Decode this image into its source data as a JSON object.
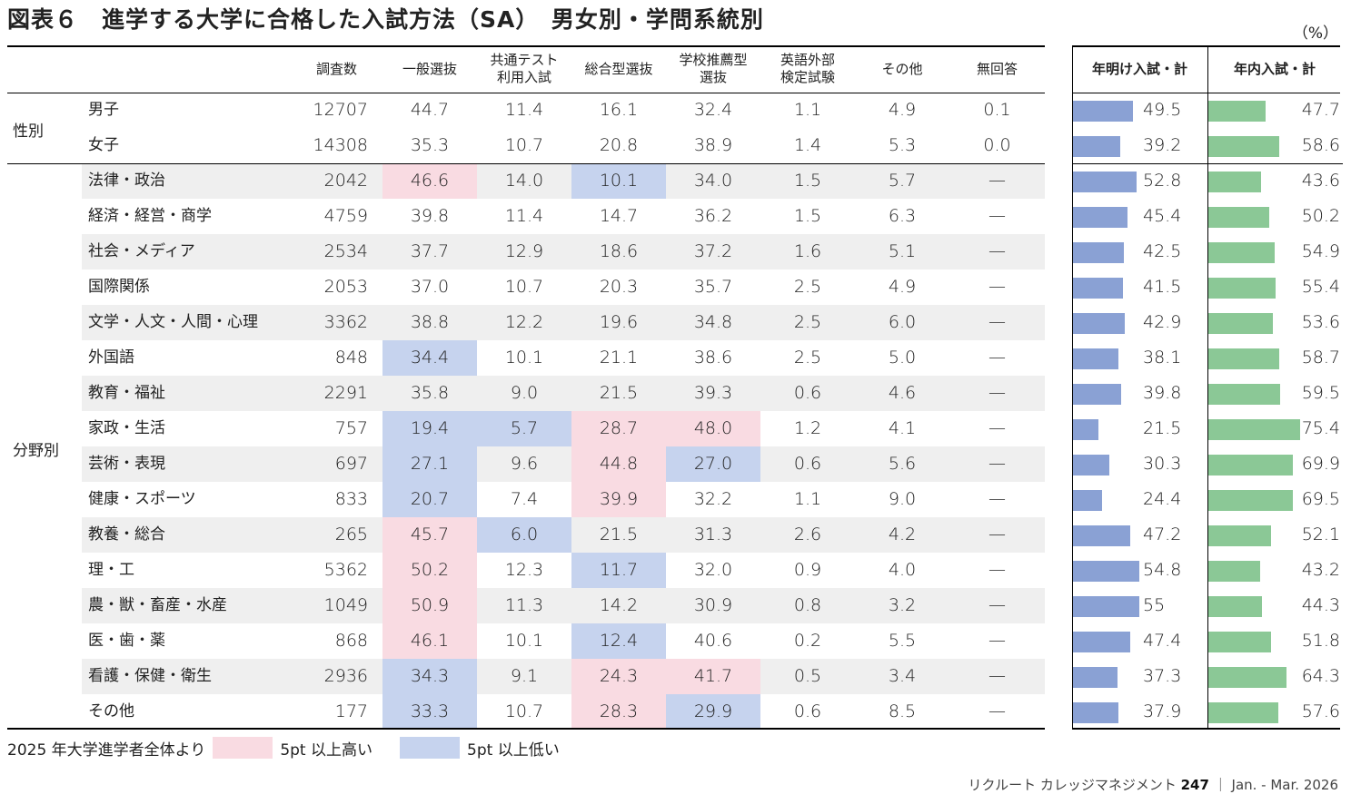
{
  "title": "図表６　進学する大学に合格した入試方法（SA）　男女別・学問系統別",
  "unit": "（%）",
  "colors": {
    "pink": "#f9dbe2",
    "blue": "#c6d3ee",
    "gray": "#efefef",
    "bar_left": "#8aa1d4",
    "bar_right": "#8bc896"
  },
  "headers": [
    "調査数",
    "一般選抜",
    "共通テスト\n利用入試",
    "総合型選抜",
    "学校推薦型\n選抜",
    "英語外部\n検定試験",
    "その他",
    "無回答"
  ],
  "right_headers": [
    "年明け入試・計",
    "年内入試・計"
  ],
  "groups": [
    "性別",
    "分野別"
  ],
  "rows": [
    {
      "name": "男子",
      "n": "12707",
      "v": [
        "44.7",
        "11.4",
        "16.1",
        "32.4",
        "1.1",
        "4.9",
        "0.1"
      ],
      "hl": [
        "",
        "",
        "",
        ""
      ],
      "a": 49.5,
      "b": 47.7
    },
    {
      "name": "女子",
      "n": "14308",
      "v": [
        "35.3",
        "10.7",
        "20.8",
        "38.9",
        "1.4",
        "5.3",
        "0.0"
      ],
      "hl": [
        "",
        "",
        "",
        ""
      ],
      "a": 39.2,
      "b": 58.6
    },
    {
      "name": "法律・政治",
      "n": "2042",
      "v": [
        "46.6",
        "14.0",
        "10.1",
        "34.0",
        "1.5",
        "5.7",
        "—"
      ],
      "hl": [
        "p",
        "",
        "b",
        ""
      ],
      "a": 52.8,
      "b": 43.6
    },
    {
      "name": "経済・経営・商学",
      "n": "4759",
      "v": [
        "39.8",
        "11.4",
        "14.7",
        "36.2",
        "1.5",
        "6.3",
        "—"
      ],
      "hl": [
        "",
        "",
        "",
        ""
      ],
      "a": 45.4,
      "b": 50.2
    },
    {
      "name": "社会・メディア",
      "n": "2534",
      "v": [
        "37.7",
        "12.9",
        "18.6",
        "37.2",
        "1.6",
        "5.1",
        "—"
      ],
      "hl": [
        "",
        "",
        "",
        ""
      ],
      "a": 42.5,
      "b": 54.9
    },
    {
      "name": "国際関係",
      "n": "2053",
      "v": [
        "37.0",
        "10.7",
        "20.3",
        "35.7",
        "2.5",
        "4.9",
        "—"
      ],
      "hl": [
        "",
        "",
        "",
        ""
      ],
      "a": 41.5,
      "b": 55.4
    },
    {
      "name": "文学・人文・人間・心理",
      "n": "3362",
      "v": [
        "38.8",
        "12.2",
        "19.6",
        "34.8",
        "2.5",
        "6.0",
        "—"
      ],
      "hl": [
        "",
        "",
        "",
        ""
      ],
      "a": 42.9,
      "b": 53.6
    },
    {
      "name": "外国語",
      "n": "848",
      "v": [
        "34.4",
        "10.1",
        "21.1",
        "38.6",
        "2.5",
        "5.0",
        "—"
      ],
      "hl": [
        "b",
        "",
        "",
        ""
      ],
      "a": 38.1,
      "b": 58.7
    },
    {
      "name": "教育・福祉",
      "n": "2291",
      "v": [
        "35.8",
        "9.0",
        "21.5",
        "39.3",
        "0.6",
        "4.6",
        "—"
      ],
      "hl": [
        "",
        "",
        "",
        ""
      ],
      "a": 39.8,
      "b": 59.5
    },
    {
      "name": "家政・生活",
      "n": "757",
      "v": [
        "19.4",
        "5.7",
        "28.7",
        "48.0",
        "1.2",
        "4.1",
        "—"
      ],
      "hl": [
        "b",
        "b",
        "p",
        "p"
      ],
      "a": 21.5,
      "b": 75.4
    },
    {
      "name": "芸術・表現",
      "n": "697",
      "v": [
        "27.1",
        "9.6",
        "44.8",
        "27.0",
        "0.6",
        "5.6",
        "—"
      ],
      "hl": [
        "b",
        "",
        "p",
        "b"
      ],
      "a": 30.3,
      "b": 69.9
    },
    {
      "name": "健康・スポーツ",
      "n": "833",
      "v": [
        "20.7",
        "7.4",
        "39.9",
        "32.2",
        "1.1",
        "9.0",
        "—"
      ],
      "hl": [
        "b",
        "",
        "p",
        ""
      ],
      "a": 24.4,
      "b": 69.5
    },
    {
      "name": "教養・総合",
      "n": "265",
      "v": [
        "45.7",
        "6.0",
        "21.5",
        "31.3",
        "2.6",
        "4.2",
        "—"
      ],
      "hl": [
        "p",
        "b",
        "",
        ""
      ],
      "a": 47.2,
      "b": 52.1
    },
    {
      "name": "理・工",
      "n": "5362",
      "v": [
        "50.2",
        "12.3",
        "11.7",
        "32.0",
        "0.9",
        "4.0",
        "—"
      ],
      "hl": [
        "p",
        "",
        "b",
        ""
      ],
      "a": 54.8,
      "b": 43.2
    },
    {
      "name": "農・獣・畜産・水産",
      "n": "1049",
      "v": [
        "50.9",
        "11.3",
        "14.2",
        "30.9",
        "0.8",
        "3.2",
        "—"
      ],
      "hl": [
        "p",
        "",
        "",
        ""
      ],
      "a": 55.0,
      "b": 44.3
    },
    {
      "name": "医・歯・薬",
      "n": "868",
      "v": [
        "46.1",
        "10.1",
        "12.4",
        "40.6",
        "0.2",
        "5.5",
        "—"
      ],
      "hl": [
        "p",
        "",
        "b",
        ""
      ],
      "a": 47.4,
      "b": 51.8
    },
    {
      "name": "看護・保健・衛生",
      "n": "2936",
      "v": [
        "34.3",
        "9.1",
        "24.3",
        "41.7",
        "0.5",
        "3.4",
        "—"
      ],
      "hl": [
        "b",
        "",
        "p",
        "p"
      ],
      "a": 37.3,
      "b": 64.3
    },
    {
      "name": "その他",
      "n": "177",
      "v": [
        "33.3",
        "10.7",
        "28.3",
        "29.9",
        "0.6",
        "8.5",
        "—"
      ],
      "hl": [
        "b",
        "",
        "p",
        "b"
      ],
      "a": 37.9,
      "b": 57.6
    }
  ],
  "legend": {
    "prefix": "2025 年大学進学者全体より",
    "high": "5pt 以上高い",
    "low": "5pt 以上低い"
  },
  "credit": {
    "pub": "リクルート カレッジマネジメント",
    "num": "247",
    "sep": "｜",
    "date": "Jan. - Mar. 2026"
  }
}
